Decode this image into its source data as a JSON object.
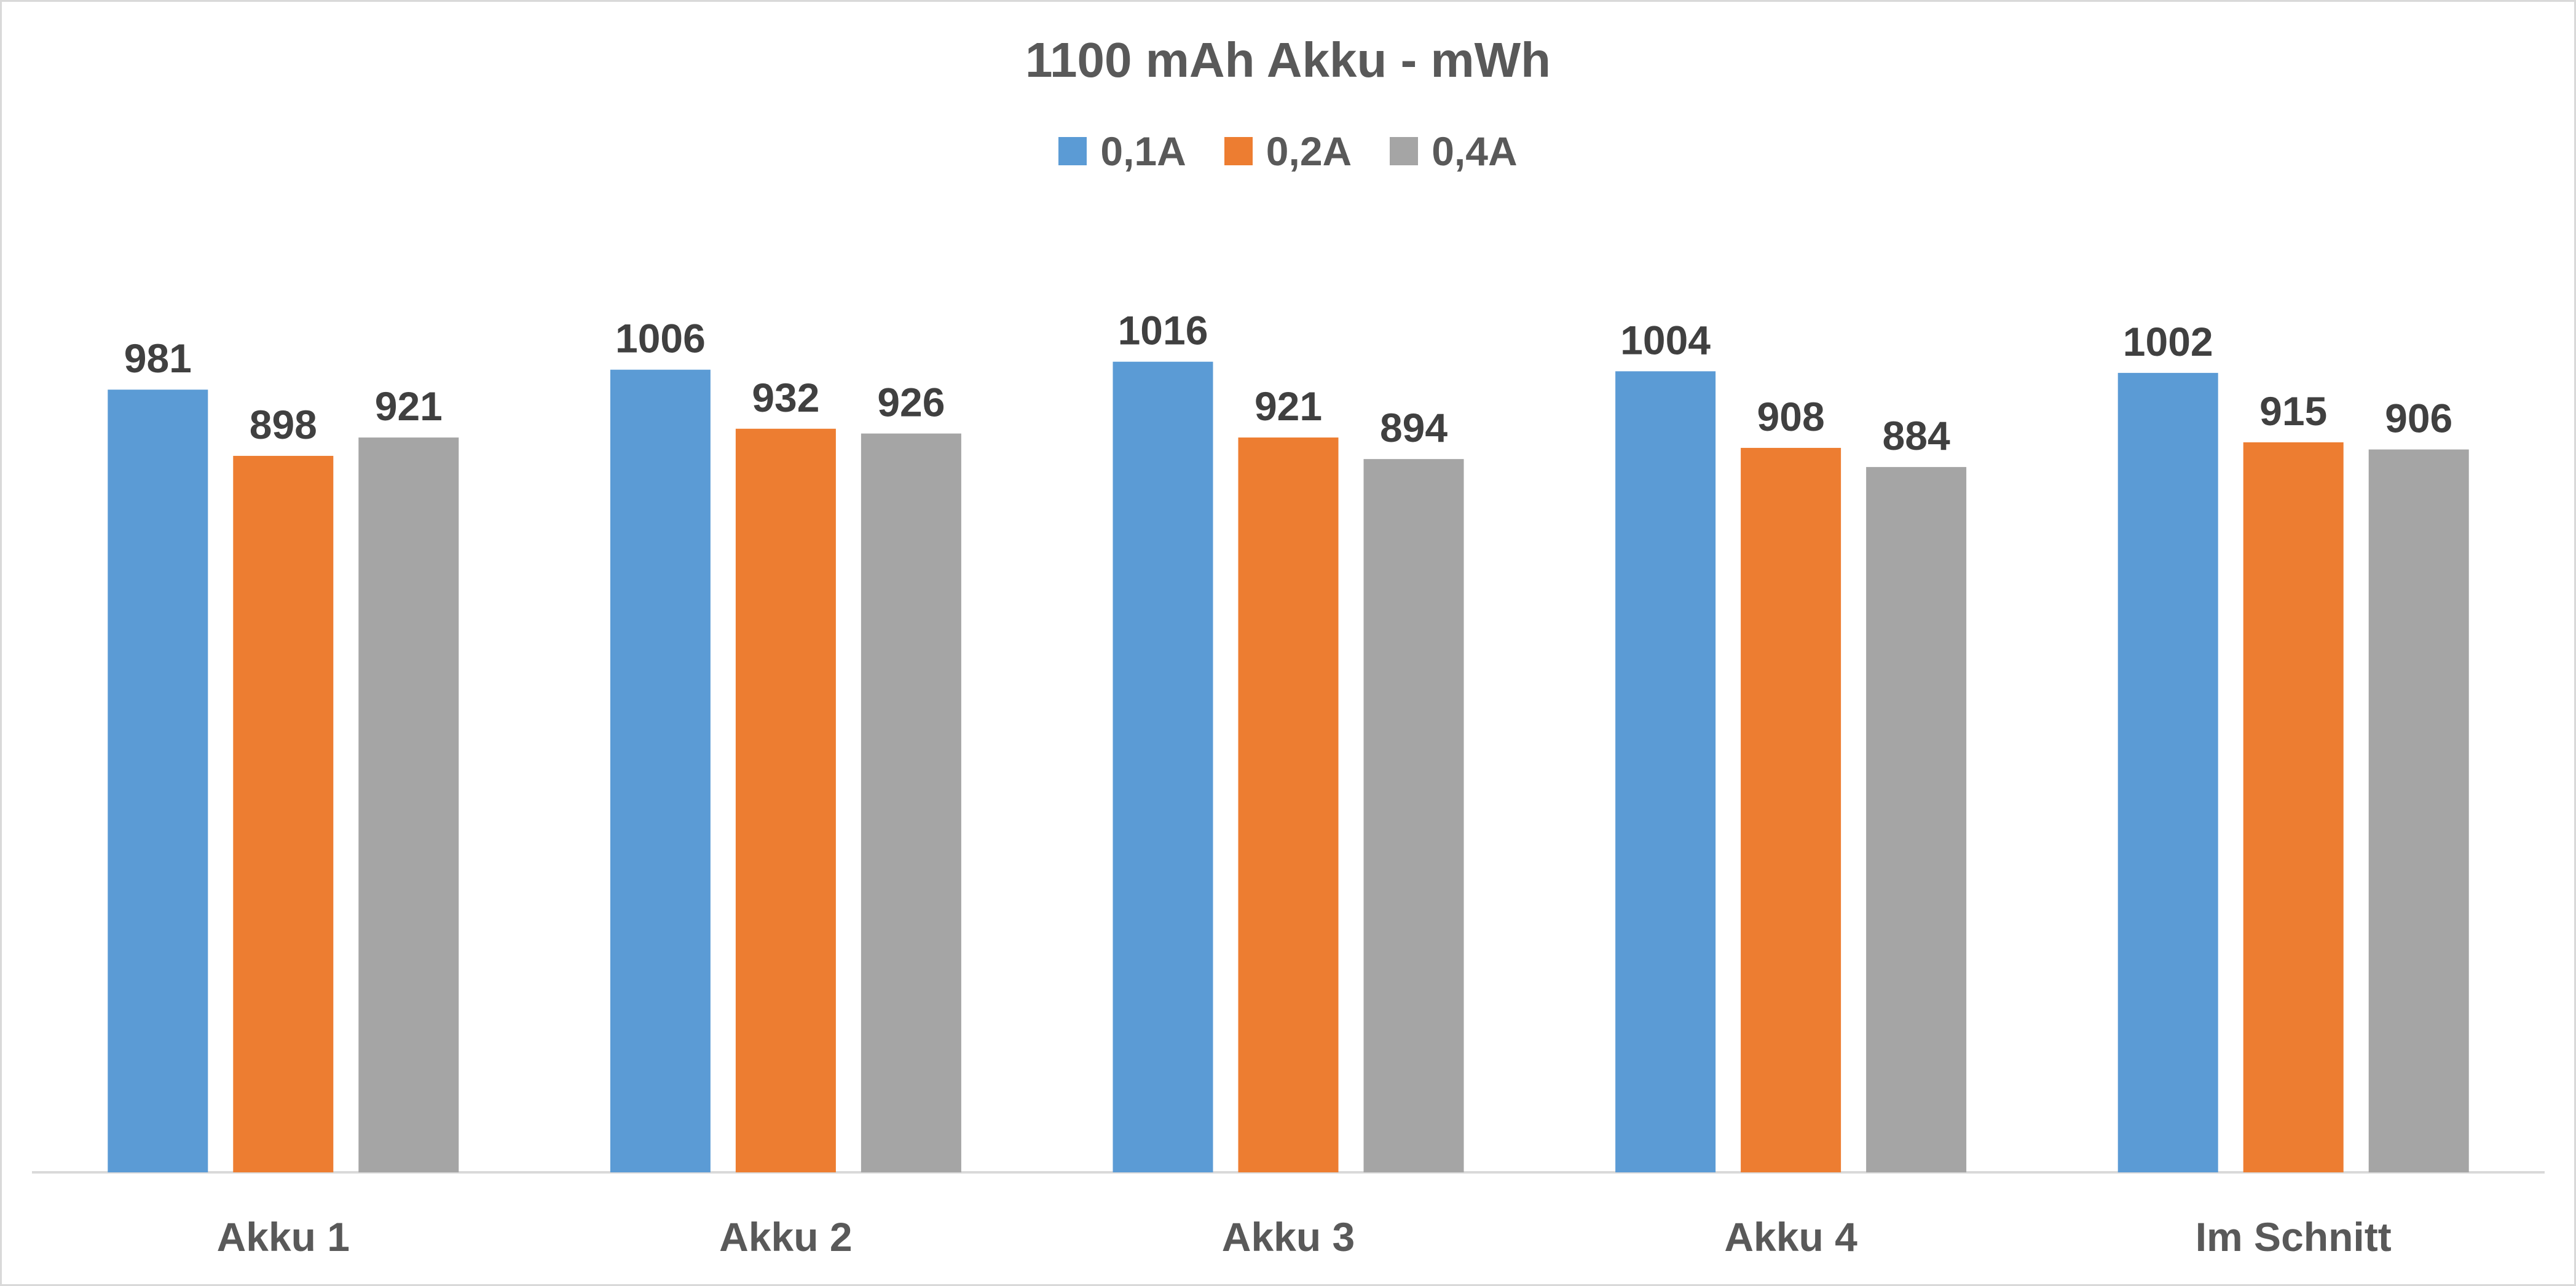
{
  "chart_data": {
    "type": "bar",
    "title": "1100 mAh Akku - mWh",
    "xlabel": "",
    "ylabel": "",
    "categories": [
      "Akku 1",
      "Akku 2",
      "Akku 3",
      "Akku 4",
      "Im Schnitt"
    ],
    "series": [
      {
        "name": "0,1A",
        "color": "#5b9bd5",
        "values": [
          981,
          1006,
          1016,
          1004,
          1002
        ]
      },
      {
        "name": "0,2A",
        "color": "#ed7d31",
        "values": [
          898,
          932,
          921,
          908,
          915
        ]
      },
      {
        "name": "0,4A",
        "color": "#a5a5a5",
        "values": [
          921,
          926,
          894,
          884,
          906
        ]
      }
    ],
    "ylim": [
      0,
      1015
    ],
    "grid": false,
    "legend_position": "top",
    "data_labels": true,
    "y_axis_visible": false
  }
}
